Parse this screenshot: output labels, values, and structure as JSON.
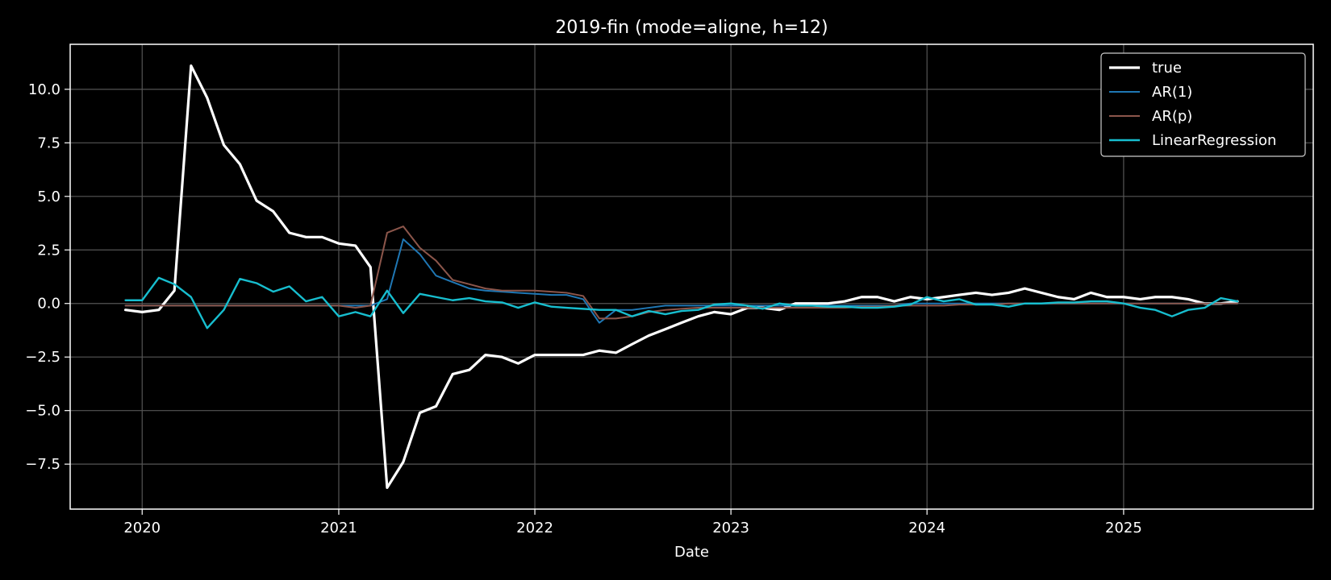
{
  "chart_data": {
    "type": "line",
    "title": "2019-fin (mode=aligne, h=12)",
    "xlabel": "Date",
    "ylabel": "",
    "x_type": "date",
    "xlim": [
      "2019-08-20",
      "2025-12-20"
    ],
    "ylim": [
      -9.6,
      12.1
    ],
    "xticks": [
      {
        "date": "2020-01-01",
        "label": "2020"
      },
      {
        "date": "2021-01-01",
        "label": "2021"
      },
      {
        "date": "2022-01-01",
        "label": "2022"
      },
      {
        "date": "2023-01-01",
        "label": "2023"
      },
      {
        "date": "2024-01-01",
        "label": "2024"
      },
      {
        "date": "2025-01-01",
        "label": "2025"
      }
    ],
    "yticks": [
      {
        "value": 10.0,
        "label": "10.0"
      },
      {
        "value": 7.5,
        "label": "7.5"
      },
      {
        "value": 5.0,
        "label": "5.0"
      },
      {
        "value": 2.5,
        "label": "2.5"
      },
      {
        "value": 0.0,
        "label": "0.0"
      },
      {
        "value": -2.5,
        "label": "−2.5"
      },
      {
        "value": -5.0,
        "label": "−5.0"
      },
      {
        "value": -7.5,
        "label": "−7.5"
      }
    ],
    "grid": true,
    "legend_position": "top-right",
    "x": [
      "2019-12",
      "2020-01",
      "2020-02",
      "2020-03",
      "2020-04",
      "2020-05",
      "2020-06",
      "2020-07",
      "2020-08",
      "2020-09",
      "2020-10",
      "2020-11",
      "2020-12",
      "2021-01",
      "2021-02",
      "2021-03",
      "2021-04",
      "2021-05",
      "2021-06",
      "2021-07",
      "2021-08",
      "2021-09",
      "2021-10",
      "2021-11",
      "2021-12",
      "2022-01",
      "2022-02",
      "2022-03",
      "2022-04",
      "2022-05",
      "2022-06",
      "2022-07",
      "2022-08",
      "2022-09",
      "2022-10",
      "2022-11",
      "2022-12",
      "2023-01",
      "2023-02",
      "2023-03",
      "2023-04",
      "2023-05",
      "2023-06",
      "2023-07",
      "2023-08",
      "2023-09",
      "2023-10",
      "2023-11",
      "2023-12",
      "2024-01",
      "2024-02",
      "2024-03",
      "2024-04",
      "2024-05",
      "2024-06",
      "2024-07",
      "2024-08",
      "2024-09",
      "2024-10",
      "2024-11",
      "2024-12",
      "2025-01",
      "2025-02",
      "2025-03",
      "2025-04",
      "2025-05",
      "2025-06",
      "2025-07",
      "2025-08"
    ],
    "series": [
      {
        "name": "true",
        "color": "#ffffff",
        "width": 3.2,
        "values": [
          -0.3,
          -0.4,
          -0.3,
          0.6,
          11.1,
          9.6,
          7.4,
          6.5,
          4.8,
          4.3,
          3.3,
          3.1,
          3.1,
          2.8,
          2.7,
          1.7,
          -8.6,
          -7.4,
          -5.1,
          -4.8,
          -3.3,
          -3.1,
          -2.4,
          -2.5,
          -2.8,
          -2.4,
          -2.4,
          -2.4,
          -2.4,
          -2.2,
          -2.3,
          -1.9,
          -1.5,
          -1.2,
          -0.9,
          -0.6,
          -0.4,
          -0.5,
          -0.2,
          -0.2,
          -0.3,
          0.0,
          0.0,
          0.0,
          0.1,
          0.3,
          0.3,
          0.1,
          0.3,
          0.2,
          0.3,
          0.4,
          0.5,
          0.4,
          0.5,
          0.7,
          0.5,
          0.3,
          0.2,
          0.5,
          0.3,
          0.3,
          0.2,
          0.3,
          0.3,
          0.2,
          0.0,
          0.0,
          0.1
        ]
      },
      {
        "name": "AR(1)",
        "color": "#1f77b4",
        "width": 2.0,
        "values": [
          -0.1,
          -0.1,
          -0.1,
          -0.1,
          -0.1,
          -0.1,
          -0.1,
          -0.1,
          -0.1,
          -0.1,
          -0.1,
          -0.1,
          -0.1,
          -0.1,
          -0.1,
          -0.1,
          0.2,
          3.0,
          2.3,
          1.3,
          1.0,
          0.7,
          0.6,
          0.55,
          0.5,
          0.45,
          0.4,
          0.4,
          0.2,
          -0.9,
          -0.3,
          -0.3,
          -0.2,
          -0.1,
          -0.1,
          -0.1,
          -0.1,
          -0.1,
          -0.1,
          -0.1,
          -0.1,
          -0.1,
          -0.1,
          -0.1,
          -0.1,
          -0.1,
          -0.1,
          -0.1,
          0.0,
          0.0,
          0.0,
          0.0,
          0.0,
          0.0,
          0.0,
          0.0,
          0.0,
          0.0,
          0.0,
          0.0,
          0.0,
          0.0,
          0.0,
          0.0,
          0.0,
          0.0,
          0.0,
          0.0,
          0.0
        ]
      },
      {
        "name": "AR(p)",
        "color": "#8c564b",
        "width": 2.0,
        "values": [
          -0.1,
          -0.1,
          -0.1,
          -0.1,
          -0.1,
          -0.1,
          -0.1,
          -0.1,
          -0.1,
          -0.1,
          -0.1,
          -0.1,
          -0.1,
          -0.1,
          -0.2,
          -0.1,
          3.3,
          3.6,
          2.6,
          2.0,
          1.1,
          0.9,
          0.7,
          0.6,
          0.6,
          0.6,
          0.55,
          0.5,
          0.35,
          -0.7,
          -0.7,
          -0.6,
          -0.4,
          -0.3,
          -0.25,
          -0.2,
          -0.2,
          -0.2,
          -0.2,
          -0.2,
          -0.2,
          -0.2,
          -0.2,
          -0.2,
          -0.2,
          -0.15,
          -0.15,
          -0.1,
          -0.1,
          -0.1,
          -0.1,
          -0.05,
          -0.05,
          -0.05,
          0.0,
          0.0,
          0.0,
          0.0,
          0.0,
          0.0,
          0.0,
          0.0,
          0.0,
          0.0,
          0.0,
          0.0,
          0.0,
          0.0,
          0.0
        ]
      },
      {
        "name": "LinearRegression",
        "color": "#17becf",
        "width": 2.4,
        "values": [
          0.15,
          0.15,
          1.2,
          0.9,
          0.3,
          -1.15,
          -0.3,
          1.15,
          0.95,
          0.55,
          0.8,
          0.1,
          0.3,
          -0.6,
          -0.4,
          -0.6,
          0.6,
          -0.45,
          0.45,
          0.3,
          0.15,
          0.25,
          0.1,
          0.05,
          -0.2,
          0.05,
          -0.15,
          -0.2,
          -0.25,
          -0.3,
          -0.3,
          -0.6,
          -0.35,
          -0.5,
          -0.35,
          -0.3,
          -0.05,
          0.0,
          -0.1,
          -0.25,
          0.0,
          -0.1,
          -0.1,
          -0.15,
          -0.15,
          -0.2,
          -0.2,
          -0.15,
          -0.05,
          0.3,
          0.1,
          0.2,
          -0.05,
          -0.05,
          -0.15,
          0.0,
          0.0,
          0.05,
          0.05,
          0.1,
          0.1,
          0.0,
          -0.2,
          -0.3,
          -0.6,
          -0.3,
          -0.2,
          0.25,
          0.1
        ]
      }
    ]
  },
  "colors": {
    "background": "#000000",
    "axes_edge": "#ffffff",
    "grid": "#555555",
    "text": "#ffffff"
  }
}
